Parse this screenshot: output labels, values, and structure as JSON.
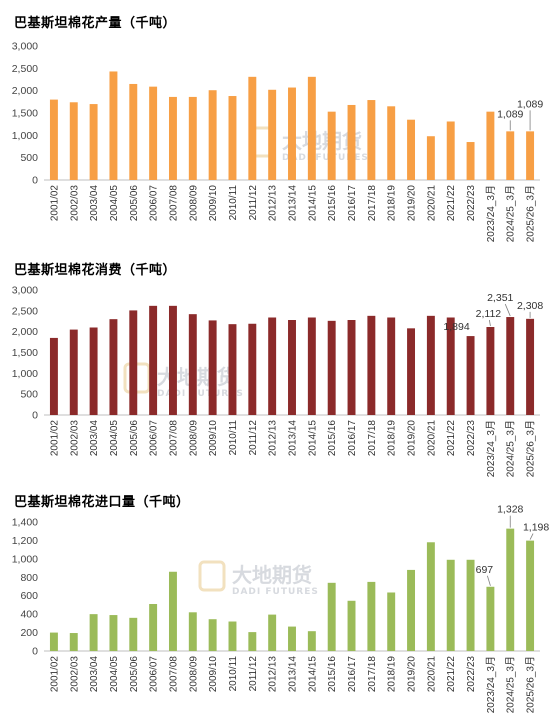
{
  "watermark": {
    "cn": "大地期货",
    "en": "DADI FUTURES"
  },
  "chart_data": [
    {
      "type": "bar",
      "title": "巴基斯坦棉花产量（千吨）",
      "color": "#F79F45",
      "ylim": [
        0,
        3000
      ],
      "yticks": [
        "0",
        "500",
        "1,000",
        "1,500",
        "2,000",
        "2,500",
        "3,000"
      ],
      "categories": [
        "2001/02",
        "2002/03",
        "2003/04",
        "2004/05",
        "2005/06",
        "2006/07",
        "2007/08",
        "2008/09",
        "2009/10",
        "2010/11",
        "2011/12",
        "2012/13",
        "2013/14",
        "2014/15",
        "2015/16",
        "2016/17",
        "2017/18",
        "2018/19",
        "2019/20",
        "2020/21",
        "2021/22",
        "2022/23",
        "2023/24_3月",
        "2024/25_3月",
        "2025/26_3月"
      ],
      "values": [
        1800,
        1740,
        1700,
        2430,
        2150,
        2090,
        1860,
        1860,
        2010,
        1880,
        2310,
        2020,
        2070,
        2310,
        1530,
        1680,
        1790,
        1650,
        1350,
        980,
        1310,
        850,
        1530,
        1089,
        1089
      ],
      "labels": [
        {
          "index": 23,
          "text": "1,089"
        },
        {
          "index": 24,
          "text": "1,089"
        }
      ]
    },
    {
      "type": "bar",
      "title": "巴基斯坦棉花消费（千吨）",
      "color": "#8B2A2A",
      "ylim": [
        0,
        3000
      ],
      "yticks": [
        "0",
        "500",
        "1,000",
        "1,500",
        "2,000",
        "2,500",
        "3,000"
      ],
      "categories": [
        "2001/02",
        "2002/03",
        "2003/04",
        "2004/05",
        "2005/06",
        "2006/07",
        "2007/08",
        "2008/09",
        "2009/10",
        "2010/11",
        "2011/12",
        "2012/13",
        "2013/14",
        "2014/15",
        "2015/16",
        "2016/17",
        "2017/18",
        "2018/19",
        "2019/20",
        "2020/21",
        "2021/22",
        "2022/23",
        "2023/24_3月",
        "2024/25_3月",
        "2025/26_3月"
      ],
      "values": [
        1850,
        2050,
        2100,
        2300,
        2510,
        2620,
        2620,
        2420,
        2270,
        2180,
        2190,
        2340,
        2280,
        2340,
        2260,
        2280,
        2380,
        2340,
        2080,
        2380,
        2340,
        1894,
        2112,
        2351,
        2308
      ],
      "labels": [
        {
          "index": 21,
          "text": "1,894"
        },
        {
          "index": 22,
          "text": "2,112"
        },
        {
          "index": 23,
          "text": "2,351"
        },
        {
          "index": 24,
          "text": "2,308"
        }
      ]
    },
    {
      "type": "bar",
      "title": "巴基斯坦棉花进口量（千吨）",
      "color": "#9BBB59",
      "ylim": [
        0,
        1400
      ],
      "yticks": [
        "0",
        "200",
        "400",
        "600",
        "800",
        "1,000",
        "1,200",
        "1,400"
      ],
      "categories": [
        "2001/02",
        "2002/03",
        "2003/04",
        "2004/05",
        "2005/06",
        "2006/07",
        "2007/08",
        "2008/09",
        "2009/10",
        "2010/11",
        "2011/12",
        "2012/13",
        "2013/14",
        "2014/15",
        "2015/16",
        "2016/17",
        "2017/18",
        "2018/19",
        "2019/20",
        "2020/21",
        "2021/22",
        "2022/23",
        "2023/24_3月",
        "2024/25_3月",
        "2025/26_3月"
      ],
      "values": [
        200,
        195,
        400,
        390,
        360,
        510,
        860,
        420,
        345,
        320,
        205,
        395,
        265,
        215,
        740,
        545,
        750,
        635,
        880,
        1180,
        990,
        990,
        697,
        1328,
        1198
      ],
      "labels": [
        {
          "index": 22,
          "text": "697"
        },
        {
          "index": 23,
          "text": "1,328"
        },
        {
          "index": 24,
          "text": "1,198"
        }
      ]
    }
  ]
}
